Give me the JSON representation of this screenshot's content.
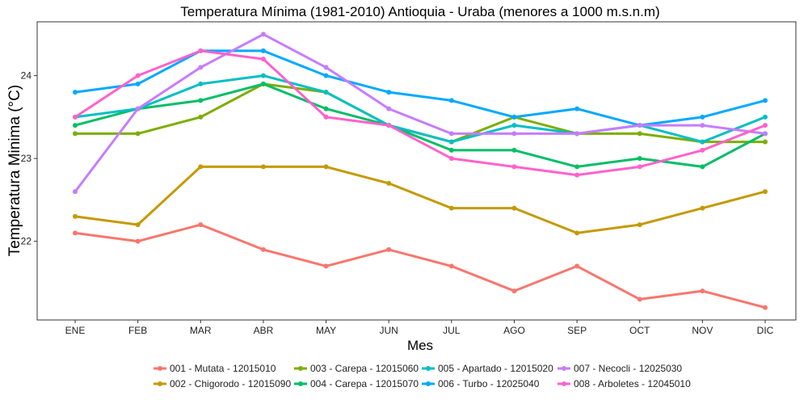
{
  "chart_data": {
    "type": "line",
    "title": "Temperatura Mínima (1981-2010) Antioquia - Uraba (menores a 1000 m.s.n.m)",
    "xlabel": "Mes",
    "ylabel": "Temperatura Minima (°C)",
    "categories": [
      "ENE",
      "FEB",
      "MAR",
      "ABR",
      "MAY",
      "JUN",
      "JUL",
      "AGO",
      "SEP",
      "OCT",
      "NOV",
      "DIC"
    ],
    "ylim": [
      21.05,
      24.65
    ],
    "yticks": [
      22,
      23,
      24
    ],
    "grid": false,
    "legend_position": "bottom",
    "series": [
      {
        "name": "001 - Mutata - 12015010",
        "color": "#F8766D",
        "values": [
          22.1,
          22.0,
          22.2,
          21.9,
          21.7,
          21.9,
          21.7,
          21.4,
          21.7,
          21.3,
          21.4,
          21.2
        ]
      },
      {
        "name": "002 - Chigorodo - 12015090",
        "color": "#C49A00",
        "values": [
          22.3,
          22.2,
          22.9,
          22.9,
          22.9,
          22.7,
          22.4,
          22.4,
          22.1,
          22.2,
          22.4,
          22.6
        ]
      },
      {
        "name": "003 - Carepa - 12015060",
        "color": "#7CAE00",
        "values": [
          23.3,
          23.3,
          23.5,
          23.9,
          23.8,
          23.4,
          23.2,
          23.5,
          23.3,
          23.3,
          23.2,
          23.2
        ]
      },
      {
        "name": "004 - Carepa - 12015070",
        "color": "#00BE67",
        "values": [
          23.4,
          23.6,
          23.7,
          23.9,
          23.6,
          23.4,
          23.1,
          23.1,
          22.9,
          23.0,
          22.9,
          23.3
        ]
      },
      {
        "name": "005 - Apartado - 12015020",
        "color": "#00BFC4",
        "values": [
          23.5,
          23.6,
          23.9,
          24.0,
          23.8,
          23.4,
          23.2,
          23.4,
          23.3,
          23.4,
          23.2,
          23.5
        ]
      },
      {
        "name": "006 - Turbo - 12025040",
        "color": "#00A9FF",
        "values": [
          23.8,
          23.9,
          24.3,
          24.3,
          24.0,
          23.8,
          23.7,
          23.5,
          23.6,
          23.4,
          23.5,
          23.7
        ]
      },
      {
        "name": "007 - Necocli - 12025030",
        "color": "#C77CFF",
        "values": [
          22.6,
          23.6,
          24.1,
          24.5,
          24.1,
          23.6,
          23.3,
          23.3,
          23.3,
          23.4,
          23.4,
          23.3
        ]
      },
      {
        "name": "008 - Arboletes - 12045010",
        "color": "#FF61CC",
        "values": [
          23.5,
          24.0,
          24.3,
          24.2,
          23.5,
          23.4,
          23.0,
          22.9,
          22.8,
          22.9,
          23.1,
          23.4
        ]
      }
    ]
  }
}
